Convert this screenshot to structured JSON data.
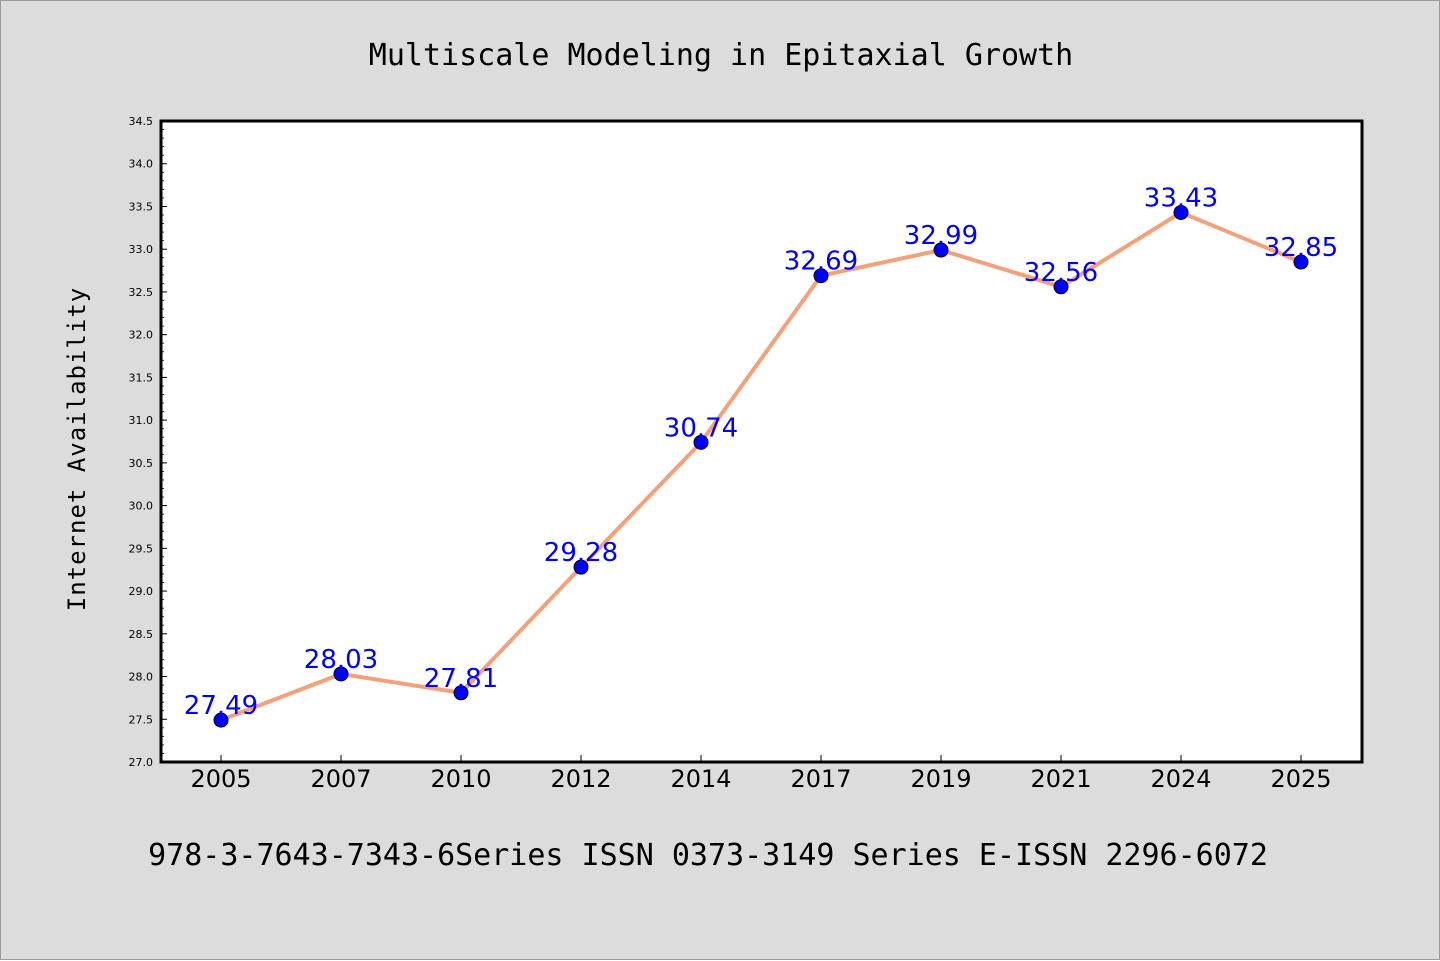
{
  "chart_data": {
    "type": "line",
    "title": "Multiscale Modeling in Epitaxial Growth",
    "xlabel": "",
    "ylabel": "Internet Availability",
    "categories": [
      "2005",
      "2007",
      "2010",
      "2012",
      "2014",
      "2017",
      "2019",
      "2021",
      "2024",
      "2025"
    ],
    "series": [
      {
        "values": [
          27.49,
          28.03,
          27.81,
          29.28,
          30.74,
          32.69,
          32.99,
          32.56,
          33.43,
          32.85
        ],
        "data_labels": [
          "27.49",
          "28.03",
          "27.81",
          "29.28",
          "30.74",
          "32.69",
          "32.99",
          "32.56",
          "33.43",
          "32.85"
        ],
        "line_color": "#f4a07a",
        "marker_color": "#0000ff"
      }
    ],
    "ylim": [
      27.0,
      34.5
    ],
    "yticks": [
      "27.0",
      "27.5",
      "28.0",
      "28.5",
      "29.0",
      "29.5",
      "30.0",
      "30.5",
      "31.0",
      "31.5",
      "32.0",
      "32.5",
      "33.0",
      "33.5",
      "34.0",
      "34.5"
    ],
    "grid": false,
    "legend": "none",
    "background_color": "#dcdcdc",
    "plot_background": "#ffffff"
  },
  "footer": "978-3-7643-7343-6Series ISSN 0373-3149 Series E-ISSN 2296-6072"
}
